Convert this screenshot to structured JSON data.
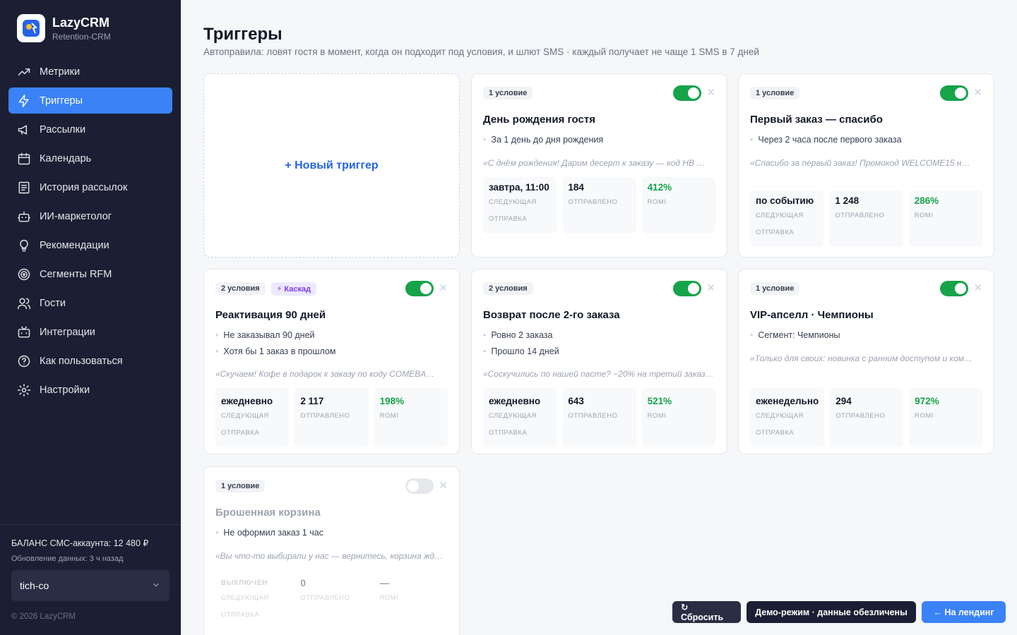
{
  "brand": {
    "name": "LazyCRM",
    "subtitle": "Retention-CRM"
  },
  "nav": [
    {
      "label": "Метрики",
      "icon": "trending-up-icon",
      "active": false
    },
    {
      "label": "Триггеры",
      "icon": "lightning-icon",
      "active": true
    },
    {
      "label": "Рассылки",
      "icon": "megaphone-icon",
      "active": false
    },
    {
      "label": "Календарь",
      "icon": "calendar-icon",
      "active": false
    },
    {
      "label": "История рассылок",
      "icon": "history-list-icon",
      "active": false
    },
    {
      "label": "ИИ-маркетолог",
      "icon": "robot-icon",
      "active": false
    },
    {
      "label": "Рекомендации",
      "icon": "lightbulb-icon",
      "active": false
    },
    {
      "label": "Сегменты RFM",
      "icon": "target-icon",
      "active": false
    },
    {
      "label": "Гости",
      "icon": "users-icon",
      "active": false
    },
    {
      "label": "Интеграции",
      "icon": "plug-icon",
      "active": false
    },
    {
      "label": "Как пользоваться",
      "icon": "help-circle-icon",
      "active": false
    },
    {
      "label": "Настройки",
      "icon": "gear-icon",
      "active": false
    }
  ],
  "sidebar_footer": {
    "balance": "БАЛАНС СМС-аккаунта: 12 480 ₽",
    "updated": "Обновление данных: 3 ч назад",
    "tenant": "tich-co",
    "copyright": "© 2026 LazyCRM"
  },
  "page": {
    "title": "Триггеры",
    "subtitle": "Автоправила: ловят гостя в момент, когда он подходит под условия, и шлют SMS · каждый получает не чаще 1 SMS в 7 дней",
    "new_trigger": "+ Новый триггер"
  },
  "triggers": [
    {
      "badge": "1 условие",
      "cascade": "",
      "enabled": true,
      "title": "День рождения гостя",
      "conditions": [
        "За 1 день до дня рождения"
      ],
      "quote": "«С днём рождения! Дарим десерт к заказу — код HB …",
      "next": "завтра, 11:00",
      "next_label": "СЛЕДУЮЩАЯ ОТПРАВКА",
      "sent": "184",
      "sent_label": "ОТПРАВЛЕНО",
      "romi": "412%",
      "romi_label": "ROMI"
    },
    {
      "badge": "1 условие",
      "cascade": "",
      "enabled": true,
      "title": "Первый заказ — спасибо",
      "conditions": [
        "Через 2 часа после первого заказа"
      ],
      "quote": "«Спасибо за первый заказ! Промокод WELCOME15 н…",
      "next": "по событию",
      "next_label": "СЛЕДУЮЩАЯ ОТПРАВКА",
      "sent": "1 248",
      "sent_label": "ОТПРАВЛЕНО",
      "romi": "286%",
      "romi_label": "ROMI"
    },
    {
      "badge": "2 условия",
      "cascade": "⚡ Каскад",
      "enabled": true,
      "title": "Реактивация 90 дней",
      "conditions": [
        "Не заказывал 90 дней",
        "Хотя бы 1 заказ в прошлом"
      ],
      "quote": "«Скучаем! Кофе в подарок к заказу по коду COMEBA…",
      "next": "ежедневно",
      "next_label": "СЛЕДУЮЩАЯ ОТПРАВКА",
      "sent": "2 117",
      "sent_label": "ОТПРАВЛЕНО",
      "romi": "198%",
      "romi_label": "ROMI"
    },
    {
      "badge": "2 условия",
      "cascade": "",
      "enabled": true,
      "title": "Возврат после 2-го заказа",
      "conditions": [
        "Ровно 2 заказа",
        "Прошло 14 дней"
      ],
      "quote": "«Соскучились по нашей пасте? −20% на третий заказ…",
      "next": "ежедневно",
      "next_label": "СЛЕДУЮЩАЯ ОТПРАВКА",
      "sent": "643",
      "sent_label": "ОТПРАВЛЕНО",
      "romi": "521%",
      "romi_label": "ROMI"
    },
    {
      "badge": "1 условие",
      "cascade": "",
      "enabled": true,
      "title": "VIP-апселл · Чемпионы",
      "conditions": [
        "Сегмент: Чемпионы"
      ],
      "quote": "«Только для своих: новинка с ранним доступом и ком…",
      "next": "еженедельно",
      "next_label": "СЛЕДУЮЩАЯ ОТПРАВКА",
      "sent": "294",
      "sent_label": "ОТПРАВЛЕНО",
      "romi": "972%",
      "romi_label": "ROMI"
    },
    {
      "badge": "1 условие",
      "cascade": "",
      "enabled": false,
      "title": "Брошенная корзина",
      "conditions": [
        "Не оформил заказ 1 час"
      ],
      "quote": "«Вы что-то выбирали у нас — вернитесь, корзина жд…",
      "next": "ВЫКЛЮЧЕН",
      "next_label": "СЛЕДУЮЩАЯ ОТПРАВКА",
      "sent": "0",
      "sent_label": "ОТПРАВЛЕНО",
      "romi": "—",
      "romi_label": "ROMI"
    }
  ],
  "actions": {
    "reset": "↻ Сбросить",
    "demo": "Демо-режим · данные обезличены",
    "landing": "← На лендинг"
  },
  "colors": {
    "accent": "#3b82f6",
    "sidebar": "#1c1f33",
    "success": "#16a34a",
    "cascade": "#7c3aed"
  }
}
